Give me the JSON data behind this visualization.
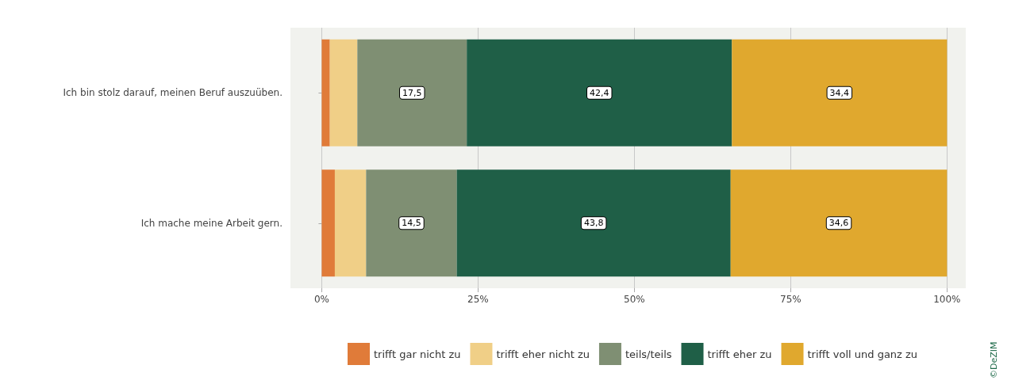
{
  "chart_data": {
    "type": "bar",
    "orientation": "horizontal",
    "stacked": true,
    "categories": [
      "Ich bin stolz darauf, meinen Beruf auszuüben.",
      "Ich mache meine Arbeit gern."
    ],
    "series": [
      {
        "name": "trifft gar nicht zu",
        "color": "#e07b39",
        "values": [
          1.3,
          2.1
        ],
        "value_labels": [
          null,
          null
        ]
      },
      {
        "name": "trifft eher nicht zu",
        "color": "#f0cf87",
        "values": [
          4.4,
          5.0
        ],
        "value_labels": [
          null,
          null
        ]
      },
      {
        "name": "teils/teils",
        "color": "#7f8f73",
        "values": [
          17.5,
          14.5
        ],
        "value_labels": [
          "17,5",
          "14,5"
        ]
      },
      {
        "name": "trifft eher zu",
        "color": "#1f5f47",
        "values": [
          42.4,
          43.8
        ],
        "value_labels": [
          "42,4",
          "43,8"
        ]
      },
      {
        "name": "trifft voll und ganz zu",
        "color": "#e0a82e",
        "values": [
          34.4,
          34.6
        ],
        "value_labels": [
          "34,4",
          "34,6"
        ]
      }
    ],
    "xlim": [
      -5,
      103
    ],
    "xticks": [
      {
        "value": 0,
        "label": "0%"
      },
      {
        "value": 25,
        "label": "25%"
      },
      {
        "value": 50,
        "label": "50%"
      },
      {
        "value": 75,
        "label": "75%"
      },
      {
        "value": 100,
        "label": "100%"
      }
    ],
    "grid": "x",
    "legend": "bottom",
    "annotations": [
      "©DeZIM"
    ]
  }
}
